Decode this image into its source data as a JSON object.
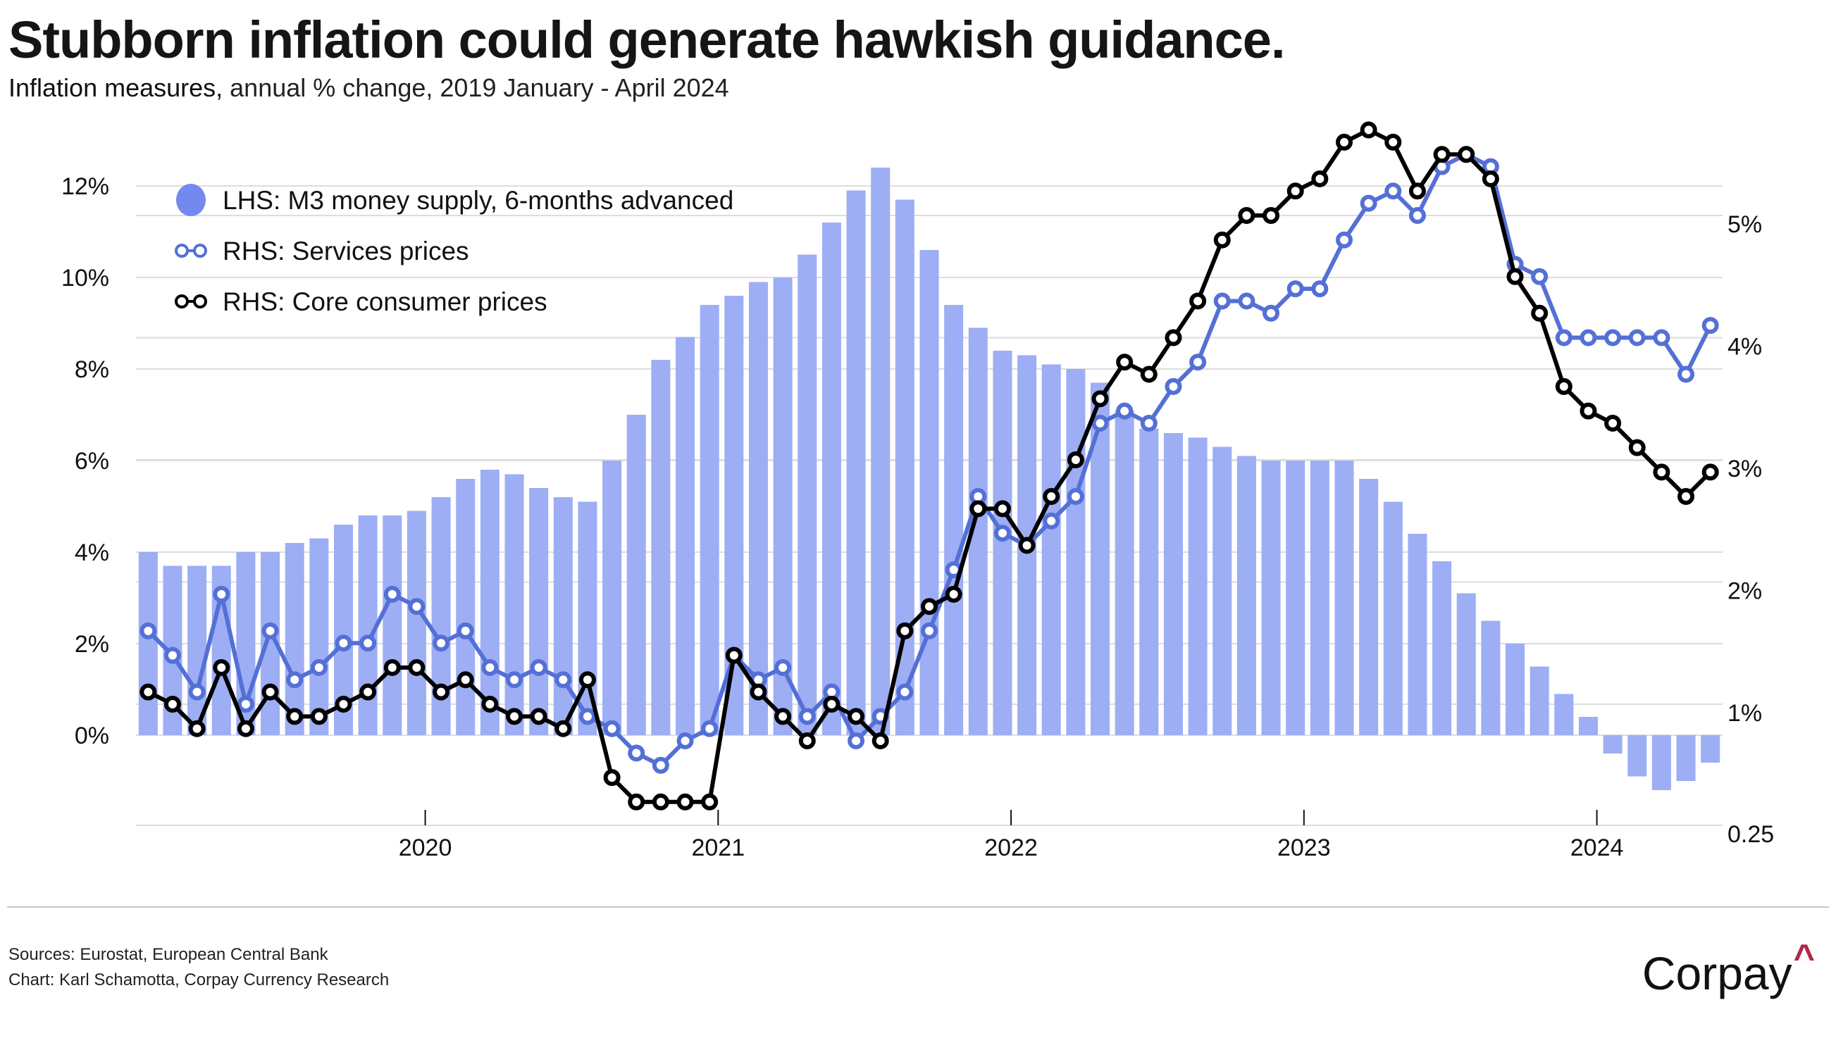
{
  "header": {
    "title": "Stubborn inflation could generate hawkish guidance.",
    "subtitle_strong": "Inflation measures,",
    "subtitle_rest": " annual % change, 2019 January - April 2024"
  },
  "footer": {
    "sources": "Sources: Eurostat, European Central Bank",
    "chart_credit": "Chart: Karl Schamotta, Corpay Currency Research",
    "logo_text": "Corpay",
    "logo_mark": "^"
  },
  "colors": {
    "bars": "#9daef4",
    "legend_bar_dot": "#7389f0",
    "services": "#5470d6",
    "core": "#000000",
    "gridline": "#dddddd",
    "logo_accent": "#b02a4a"
  },
  "chart_data": {
    "type": "bar+line",
    "title": "Stubborn inflation could generate hawkish guidance.",
    "subtitle": "Inflation measures, annual % change, 2019 January - April 2024",
    "x_start": "2019-01",
    "x_frequency": "monthly",
    "x_ticks": [
      "2020",
      "2021",
      "2022",
      "2023",
      "2024"
    ],
    "y_left": {
      "ticks": [
        "0%",
        "2%",
        "4%",
        "6%",
        "8%",
        "10%",
        "12%"
      ],
      "range": [
        -2,
        12.5
      ]
    },
    "y_right": {
      "ticks": [
        "0.25",
        "1%",
        "2%",
        "3%",
        "4%",
        "5%"
      ],
      "range": [
        0.25,
        5.6
      ]
    },
    "grid": true,
    "legend_position": "top-left",
    "series": [
      {
        "name": "LHS: M3 money supply, 6-months advanced",
        "type": "bar",
        "axis": "left",
        "values": [
          4.0,
          3.7,
          3.7,
          3.7,
          4.0,
          4.0,
          4.2,
          4.3,
          4.6,
          4.8,
          4.8,
          4.9,
          5.2,
          5.6,
          5.8,
          5.7,
          5.4,
          5.2,
          5.1,
          6.0,
          7.0,
          8.2,
          8.7,
          9.4,
          9.6,
          9.9,
          10.0,
          10.5,
          11.2,
          11.9,
          12.4,
          11.7,
          10.6,
          9.4,
          8.9,
          8.4,
          8.3,
          8.1,
          8.0,
          7.7,
          7.1,
          6.7,
          6.6,
          6.5,
          6.3,
          6.1,
          6.0,
          6.0,
          6.0,
          6.0,
          5.6,
          5.1,
          4.4,
          3.8,
          3.1,
          2.5,
          2.0,
          1.5,
          0.9,
          0.4,
          -0.4,
          -0.9,
          -1.2,
          -1.0,
          -0.6
        ]
      },
      {
        "name": "RHS: Services prices",
        "type": "line",
        "axis": "right",
        "values": [
          1.6,
          1.4,
          1.1,
          1.9,
          1.0,
          1.6,
          1.2,
          1.3,
          1.5,
          1.5,
          1.9,
          1.8,
          1.5,
          1.6,
          1.3,
          1.2,
          1.3,
          1.2,
          0.9,
          0.8,
          0.6,
          0.5,
          0.7,
          0.8,
          1.4,
          1.2,
          1.3,
          0.9,
          1.1,
          0.7,
          0.9,
          1.1,
          1.6,
          2.1,
          2.7,
          2.4,
          2.3,
          2.5,
          2.7,
          3.3,
          3.4,
          3.3,
          3.6,
          3.8,
          4.3,
          4.3,
          4.2,
          4.4,
          4.4,
          4.8,
          5.1,
          5.2,
          5.0,
          5.4,
          5.5,
          5.4,
          4.6,
          4.5,
          4.0,
          4.0,
          4.0,
          4.0,
          4.0,
          3.7,
          4.1
        ]
      },
      {
        "name": "RHS: Core consumer prices",
        "type": "line",
        "axis": "right",
        "values": [
          1.1,
          1.0,
          0.8,
          1.3,
          0.8,
          1.1,
          0.9,
          0.9,
          1.0,
          1.1,
          1.3,
          1.3,
          1.1,
          1.2,
          1.0,
          0.9,
          0.9,
          0.8,
          1.2,
          0.4,
          0.2,
          0.2,
          0.2,
          0.2,
          1.4,
          1.1,
          0.9,
          0.7,
          1.0,
          0.9,
          0.7,
          1.6,
          1.8,
          1.9,
          2.6,
          2.6,
          2.3,
          2.7,
          3.0,
          3.5,
          3.8,
          3.7,
          4.0,
          4.3,
          4.8,
          5.0,
          5.0,
          5.2,
          5.3,
          5.6,
          5.7,
          5.6,
          5.2,
          5.5,
          5.5,
          5.3,
          4.5,
          4.2,
          3.6,
          3.4,
          3.3,
          3.1,
          2.9,
          2.7,
          2.9
        ]
      }
    ]
  }
}
